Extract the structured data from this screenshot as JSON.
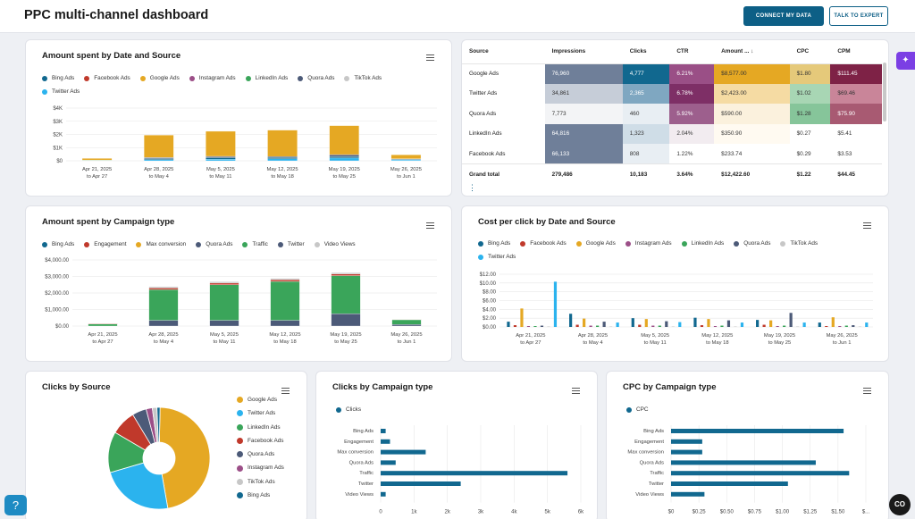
{
  "header": {
    "title": "PPC multi-channel dashboard",
    "connect_label": "CONNECT MY DATA",
    "expert_label": "TALK TO EXPERT"
  },
  "colors": {
    "Bing Ads": "#11688f",
    "Facebook Ads": "#c0392b",
    "Google Ads": "#e5a823",
    "Instagram Ads": "#9c4f88",
    "LinkedIn Ads": "#3aa55a",
    "Quora Ads": "#4c5a78",
    "TikTok Ads": "#c7c7c7",
    "Twitter Ads": "#2bb3ee",
    "Engagement": "#c0392b",
    "Max conversion": "#e5a823",
    "Traffic": "#3aa55a",
    "Twitter": "#4c5a78",
    "Video Views": "#c7c7c7"
  },
  "chart1": {
    "title": "Amount spent by Date and Source",
    "chart_data": {
      "type": "bar",
      "stacked": true,
      "title": "Amount spent by Date and Source",
      "legend": [
        "Bing Ads",
        "Facebook Ads",
        "Google Ads",
        "Instagram Ads",
        "LinkedIn Ads",
        "Quora Ads",
        "TikTok Ads",
        "Twitter Ads"
      ],
      "categories": [
        "Apr 21, 2025 to Apr 27, 2025 (Week 17)",
        "Apr 28, 2025 to May 4, 2025 (Week 18)",
        "May 5, 2025 to May 11, 2025 (Week 19)",
        "May 12, 2025 to May 18, 2025 (Week 20)",
        "May 19, 2025 to May 25, 2025 (Week 21)",
        "May 26, 2025 to Jun 1, 2025 (Week 22)"
      ],
      "series": [
        {
          "name": "Twitter Ads",
          "values": [
            0,
            80,
            120,
            150,
            210,
            70
          ]
        },
        {
          "name": "Bing Ads",
          "values": [
            20,
            90,
            120,
            100,
            120,
            60
          ]
        },
        {
          "name": "LinkedIn Ads",
          "values": [
            40,
            0,
            0,
            0,
            0,
            0
          ]
        },
        {
          "name": "Quora Ads",
          "values": [
            0,
            70,
            90,
            80,
            130,
            20
          ]
        },
        {
          "name": "Facebook Ads",
          "values": [
            0,
            10,
            10,
            0,
            10,
            0
          ]
        },
        {
          "name": "Google Ads",
          "values": [
            120,
            1700,
            1900,
            2000,
            2200,
            300
          ]
        }
      ],
      "yticks": [
        "$0",
        "$1K",
        "$2K",
        "$3K",
        "$4K"
      ],
      "ylim": [
        0,
        4000
      ]
    }
  },
  "table": {
    "headers": [
      "Source",
      "Impressions",
      "Clicks",
      "CTR",
      "Amount ... ↓",
      "CPC",
      "CPM"
    ],
    "rows": [
      [
        "Google Ads",
        "76,960",
        "4,777",
        "6.21%",
        "$8,577.00",
        "$1.80",
        "$111.45"
      ],
      [
        "Twitter Ads",
        "34,861",
        "2,365",
        "6.78%",
        "$2,423.00",
        "$1.02",
        "$69.46"
      ],
      [
        "Quora Ads",
        "7,773",
        "460",
        "5.92%",
        "$590.00",
        "$1.28",
        "$75.90"
      ],
      [
        "LinkedIn Ads",
        "64,816",
        "1,323",
        "2.04%",
        "$350.90",
        "$0.27",
        "$5.41"
      ],
      [
        "Facebook Ads",
        "66,133",
        "808",
        "1.22%",
        "$233.74",
        "$0.29",
        "$3.53"
      ]
    ],
    "total": [
      "Grand total",
      "279,486",
      "10,183",
      "3.64%",
      "$12,422.60",
      "$1.22",
      "$44.45"
    ]
  },
  "chart2": {
    "title": "Amount spent by Campaign type",
    "chart_data": {
      "type": "bar",
      "stacked": true,
      "title": "Amount spent by Campaign type",
      "legend": [
        "Bing Ads",
        "Engagement",
        "Max conversion",
        "Quora Ads",
        "Traffic",
        "Twitter",
        "Video Views"
      ],
      "categories": [
        "Apr 21, 2025 to Apr 27, 2025 (Week 17)",
        "Apr 28, 2025 to May 4, 2025 (Week 18)",
        "May 5, 2025 to May 11, 2025 (Week 19)",
        "May 12, 2025 to May 18, 2025 (Week 20)",
        "May 19, 2025 to May 25, 2025 (Week 21)",
        "May 26, 2025 to Jun 1, 2025 (Week 22)"
      ],
      "series": [
        {
          "name": "Twitter",
          "values": [
            0,
            350,
            350,
            350,
            750,
            100
          ]
        },
        {
          "name": "Traffic",
          "values": [
            120,
            1850,
            2150,
            2350,
            2300,
            280
          ]
        },
        {
          "name": "Engagement",
          "values": [
            30,
            100,
            100,
            100,
            100,
            20
          ]
        },
        {
          "name": "Video Views",
          "values": [
            0,
            80,
            80,
            80,
            80,
            0
          ]
        }
      ],
      "yticks": [
        "$0.00",
        "$1,000.00",
        "$2,000.00",
        "$3,000.00",
        "$4,000.00"
      ],
      "ylim": [
        0,
        4000
      ]
    }
  },
  "chart3": {
    "title": "Cost per click by Date and Source",
    "chart_data": {
      "type": "bar",
      "title": "Cost per click by Date and Source",
      "legend": [
        "Bing Ads",
        "Facebook Ads",
        "Google Ads",
        "Instagram Ads",
        "LinkedIn Ads",
        "Quora Ads",
        "TikTok Ads",
        "Twitter Ads"
      ],
      "categories": [
        "Apr 21, 2025 to Apr 27, 2025 (Week 17)",
        "Apr 28, 2025 to May 4, 2025 (Week 18)",
        "May 5, 2025 to May 11, 2025 (Week 19)",
        "May 12, 2025 to May 18, 2025 (Week 20)",
        "May 19, 2025 to May 25, 2025 (Week 21)",
        "May 26, 2025 to Jun 1, 2025 (Week 22)"
      ],
      "series": [
        {
          "name": "Bing Ads",
          "values": [
            1.2,
            3.0,
            2.0,
            2.1,
            1.6,
            1.0
          ]
        },
        {
          "name": "Facebook Ads",
          "values": [
            0.4,
            0.5,
            0.5,
            0.4,
            0.5,
            0.2
          ]
        },
        {
          "name": "Google Ads",
          "values": [
            4.2,
            1.9,
            1.8,
            1.8,
            1.5,
            2.2
          ]
        },
        {
          "name": "Instagram Ads",
          "values": [
            0.2,
            0.3,
            0.3,
            0.2,
            0.2,
            0.2
          ]
        },
        {
          "name": "LinkedIn Ads",
          "values": [
            0.2,
            0.3,
            0.3,
            0.3,
            0.3,
            0.3
          ]
        },
        {
          "name": "Quora Ads",
          "values": [
            0.3,
            1.2,
            1.3,
            1.5,
            3.2,
            0.4
          ]
        },
        {
          "name": "TikTok Ads",
          "values": [
            0.1,
            0.1,
            0.1,
            0.1,
            0.1,
            0.1
          ]
        },
        {
          "name": "Twitter Ads",
          "values": [
            10.3,
            1.0,
            1.1,
            1.0,
            1.0,
            1.0
          ]
        }
      ],
      "yticks": [
        "$0.00",
        "$2.00",
        "$4.00",
        "$6.00",
        "$8.00",
        "$10.00",
        "$12.00"
      ],
      "ylim": [
        0,
        12
      ]
    }
  },
  "chart4": {
    "title": "Clicks by Source",
    "chart_data": {
      "type": "pie",
      "title": "Clicks by Source",
      "donut": true,
      "labels": [
        "Google Ads",
        "Twitter Ads",
        "LinkedIn Ads",
        "Facebook Ads",
        "Quora Ads",
        "Instagram Ads",
        "TikTok Ads",
        "Bing Ads"
      ],
      "values": [
        4777,
        2365,
        1323,
        808,
        460,
        200,
        150,
        100
      ]
    }
  },
  "chart5": {
    "title": "Clicks by Campaign type",
    "chart_data": {
      "type": "bar",
      "orientation": "horizontal",
      "title": "Clicks by Campaign type",
      "legend": [
        "Clicks"
      ],
      "categories": [
        "Bing Ads",
        "Engagement",
        "Max conversion",
        "Quora Ads",
        "Traffic",
        "Twitter",
        "Video Views"
      ],
      "values": [
        150,
        280,
        1350,
        450,
        5600,
        2400,
        150
      ],
      "xticks": [
        "0",
        "1k",
        "2k",
        "3k",
        "4k",
        "5k",
        "6k"
      ],
      "xlim": [
        0,
        6000
      ]
    }
  },
  "chart6": {
    "title": "CPC by Campaign type",
    "chart_data": {
      "type": "bar",
      "orientation": "horizontal",
      "title": "CPC by Campaign type",
      "legend": [
        "CPC"
      ],
      "categories": [
        "Bing Ads",
        "Engagement",
        "Max conversion",
        "Quora Ads",
        "Traffic",
        "Twitter",
        "Video Views"
      ],
      "values": [
        1.55,
        0.28,
        0.28,
        1.3,
        1.6,
        1.05,
        0.3
      ],
      "xticks": [
        "$0",
        "$0.25",
        "$0.50",
        "$0.75",
        "$1.00",
        "$1.25",
        "$1.50",
        "$..."
      ],
      "xlim": [
        0,
        1.75
      ]
    }
  },
  "misc": {
    "help_icon": "?",
    "brand_badge": "CO",
    "dots": "⋮",
    "side_tab": "✦"
  }
}
